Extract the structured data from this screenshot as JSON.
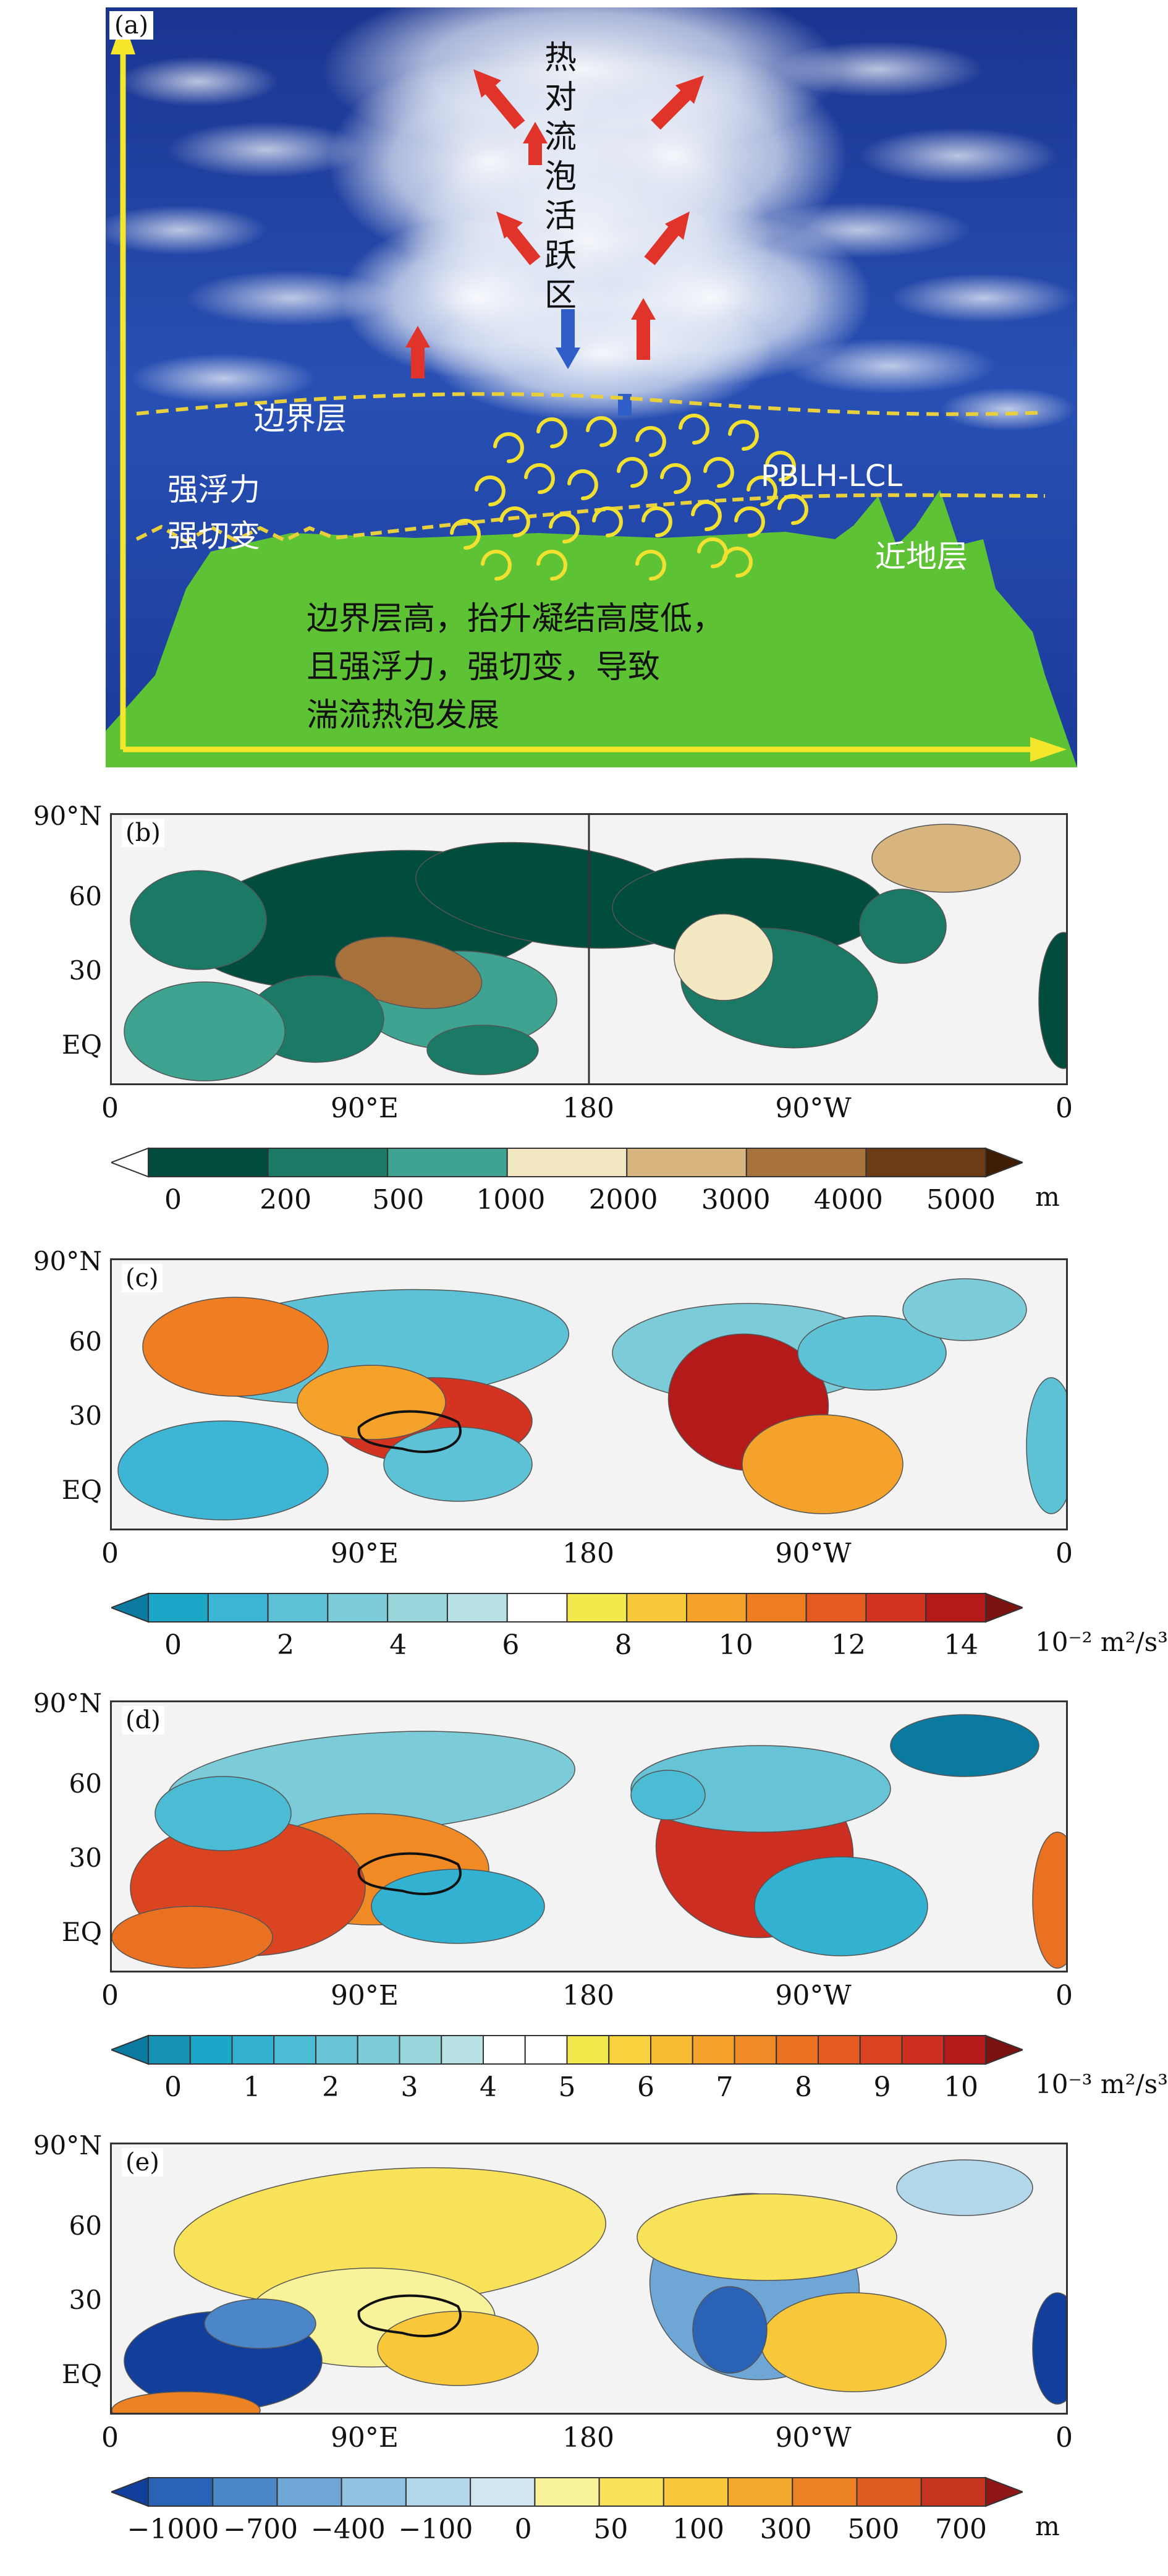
{
  "panel_a": {
    "letter": "(a)",
    "convection_label": [
      "热",
      "对",
      "流",
      "泡",
      "活",
      "跃",
      "区"
    ],
    "boundary_layer": "边界层",
    "buoyancy": "强浮力",
    "shear": "强切变",
    "pblh_lcl": "PBLH-LCL",
    "surface_layer": "近地层",
    "caption_lines": [
      "边界层高，抬升凝结高度低，",
      "且强浮力，强切变，导致",
      "湍流热泡发展"
    ],
    "colors": {
      "sky": "#1b3a9a",
      "ground": "#5ec235",
      "axis": "#f4e62a",
      "dash": "#e8cf3c",
      "up_arrow": "#e0332a",
      "down_arrow": "#2f5ec8"
    }
  },
  "map_axes": {
    "lat_labels": [
      "90°N",
      "60",
      "30",
      "EQ"
    ],
    "lon_labels": [
      "0",
      "90°E",
      "180",
      "90°W",
      "0"
    ]
  },
  "panels": [
    {
      "letter": "(b)",
      "colorbar": {
        "colors": [
          "#ffffff",
          "#004d3e",
          "#1a7a66",
          "#3ea391",
          "#f2e8c2",
          "#d8b57e",
          "#a8723c",
          "#6b3c16",
          "#3d1e05"
        ],
        "labels": [
          "0",
          "200",
          "500",
          "1000",
          "2000",
          "3000",
          "4000",
          "5000"
        ],
        "unit": "m"
      }
    },
    {
      "letter": "(c)",
      "colorbar": {
        "colors": [
          "#0a7aa0",
          "#1ca6c8",
          "#3cb6d4",
          "#5ec2d6",
          "#7ccbd8",
          "#98d6dc",
          "#b8e2e4",
          "#ffffff",
          "#f4e94c",
          "#f8c73a",
          "#f4a22a",
          "#ef7d22",
          "#e55a20",
          "#d33422",
          "#b41a1a",
          "#7a1212"
        ],
        "labels": [
          "0",
          "2",
          "4",
          "6",
          "8",
          "10",
          "12",
          "14"
        ],
        "unit": "10⁻² m²/s³"
      }
    },
    {
      "letter": "(d)",
      "colorbar": {
        "colors": [
          "#0a7aa0",
          "#1592b4",
          "#1ca6c8",
          "#32b2d0",
          "#4cbcd4",
          "#66c4d6",
          "#7ccbd8",
          "#98d6dc",
          "#b8e2e4",
          "#ffffff",
          "#ffffff",
          "#f4e94c",
          "#f8d23c",
          "#f8bc32",
          "#f4a22a",
          "#ef8a24",
          "#ea7022",
          "#e55a20",
          "#db4420",
          "#cc2e22",
          "#b41a1a",
          "#7a1212"
        ],
        "labels": [
          "0",
          "1",
          "2",
          "3",
          "4",
          "5",
          "6",
          "7",
          "8",
          "9",
          "10"
        ],
        "unit": "10⁻³ m²/s³"
      }
    },
    {
      "letter": "(e)",
      "colorbar": {
        "colors": [
          "#123e9c",
          "#2a62b6",
          "#4a86c8",
          "#6ea6d6",
          "#92c2e2",
          "#b2d6ea",
          "#d0e6f0",
          "#f8f29a",
          "#f8e25a",
          "#f8c83a",
          "#f4a82c",
          "#ec8224",
          "#de5c20",
          "#c63420",
          "#8e1616"
        ],
        "labels": [
          "−1000",
          "−700",
          "−400",
          "−100",
          "0",
          "50",
          "100",
          "300",
          "500",
          "700"
        ],
        "unit": "m"
      }
    }
  ]
}
